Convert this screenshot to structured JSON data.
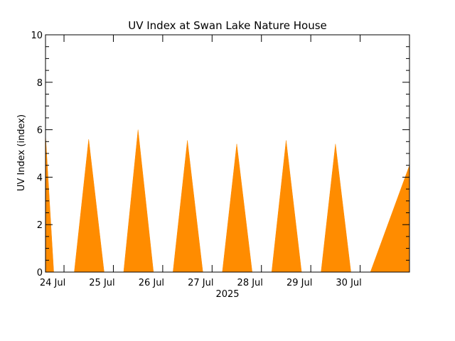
{
  "chart_data": {
    "type": "area",
    "title": "UV Index at Swan Lake Nature House",
    "ylabel": "UV Index (index)",
    "xlabel": "2025",
    "ylim": [
      0,
      10
    ],
    "xlim": [
      "2025-07-23T15:00",
      "2025-07-31T00:00"
    ],
    "y_ticks": [
      "0",
      "2",
      "4",
      "6",
      "8",
      "10"
    ],
    "y_minor_step": 0.5,
    "x_ticks": [
      {
        "label": "24 Jul",
        "at": "2025-07-24T00:00"
      },
      {
        "label": "25 Jul",
        "at": "2025-07-25T00:00"
      },
      {
        "label": "26 Jul",
        "at": "2025-07-26T00:00"
      },
      {
        "label": "27 Jul",
        "at": "2025-07-27T00:00"
      },
      {
        "label": "28 Jul",
        "at": "2025-07-28T00:00"
      },
      {
        "label": "29 Jul",
        "at": "2025-07-29T00:00"
      },
      {
        "label": "30 Jul",
        "at": "2025-07-30T00:00"
      }
    ],
    "fill_color": "#ff8c00",
    "series": [
      {
        "values": [
          {
            "start": "2025-07-23T15:00",
            "peak": "2025-07-23T15:00",
            "end": "2025-07-23T19:00",
            "max": 5.8
          },
          {
            "start": "2025-07-24T05:00",
            "peak": "2025-07-24T12:00",
            "end": "2025-07-24T19:30",
            "max": 5.6
          },
          {
            "start": "2025-07-25T05:00",
            "peak": "2025-07-25T12:00",
            "end": "2025-07-25T19:30",
            "max": 6.0
          },
          {
            "start": "2025-07-26T05:00",
            "peak": "2025-07-26T12:00",
            "end": "2025-07-26T19:30",
            "max": 5.55
          },
          {
            "start": "2025-07-27T05:00",
            "peak": "2025-07-27T12:00",
            "end": "2025-07-27T19:30",
            "max": 5.4
          },
          {
            "start": "2025-07-28T05:00",
            "peak": "2025-07-28T12:00",
            "end": "2025-07-28T19:30",
            "max": 5.55
          },
          {
            "start": "2025-07-29T05:00",
            "peak": "2025-07-29T12:00",
            "end": "2025-07-29T19:30",
            "max": 5.4
          },
          {
            "start": "2025-07-30T05:00",
            "peak": "2025-07-31T00:00",
            "end": "2025-07-31T00:00",
            "max": 4.5
          }
        ]
      }
    ]
  }
}
